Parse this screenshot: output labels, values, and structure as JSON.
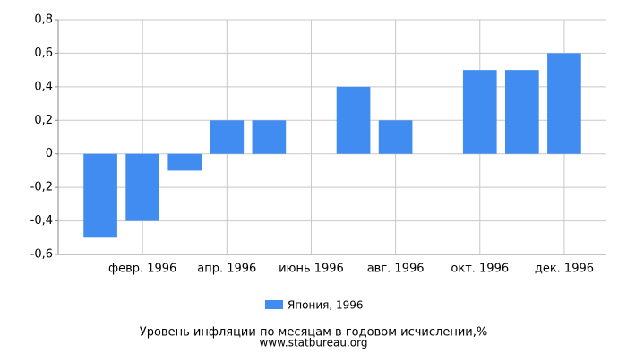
{
  "chart_data": {
    "type": "bar",
    "title": "Уровень инфляции по месяцам в годовом исчислении,%",
    "subtitle": "www.statbureau.org",
    "categories": [
      null,
      "февр. 1996",
      null,
      "апр. 1996",
      null,
      "июнь 1996",
      null,
      "авг. 1996",
      null,
      "окт. 1996",
      null,
      "дек. 1996"
    ],
    "series": [
      {
        "name": "Япония, 1996",
        "color": "#418cf0",
        "values": [
          -0.5,
          -0.4,
          -0.1,
          0.2,
          0.2,
          0,
          0.4,
          0.2,
          0,
          0.5,
          0.5,
          0.6
        ]
      }
    ],
    "ylim": [
      -0.6,
      0.8
    ],
    "yticks": [
      {
        "value": -0.6,
        "label": "-0,6"
      },
      {
        "value": -0.4,
        "label": "-0,4"
      },
      {
        "value": -0.2,
        "label": "-0,2"
      },
      0,
      {
        "value": 0.2,
        "label": "0,2"
      },
      {
        "value": 0.4,
        "label": "0,4"
      },
      {
        "value": 0.6,
        "label": "0,6"
      },
      {
        "value": 0.8,
        "label": "0,8"
      }
    ],
    "grid": true
  }
}
